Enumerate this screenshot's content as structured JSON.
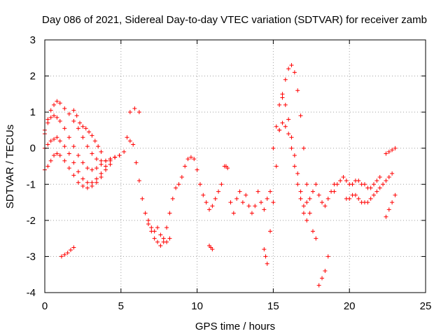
{
  "chart_data": {
    "type": "scatter",
    "title": "Day 086 of 2021, Sidereal Day-to-day VTEC variation (SDTVAR) for receiver zamb",
    "xlabel": "GPS time / hours",
    "ylabel": "SDTVAR / TECUs",
    "xlim": [
      0,
      25
    ],
    "ylim": [
      -4,
      3
    ],
    "xticks": [
      "0",
      "5",
      "10",
      "15",
      "20",
      "25"
    ],
    "yticks": [
      "-4",
      "-3",
      "-2",
      "-1",
      "0",
      "1",
      "2",
      "3"
    ],
    "grid": true,
    "marker": "plus",
    "color": "#ff0000",
    "series": [
      {
        "name": "arc-1",
        "x": [
          0.0,
          0.2,
          0.4,
          0.6,
          0.8,
          1.0,
          1.3,
          1.6,
          1.9,
          2.2,
          2.5,
          2.8,
          3.1,
          3.4,
          3.7,
          4.0,
          4.3,
          4.6,
          4.9,
          5.2
        ],
        "y": [
          0.4,
          0.8,
          1.05,
          1.2,
          1.3,
          1.25,
          1.1,
          0.95,
          0.75,
          0.55,
          0.3,
          0.05,
          -0.15,
          -0.3,
          -0.35,
          -0.35,
          -0.3,
          -0.25,
          -0.2,
          -0.1
        ]
      },
      {
        "name": "arc-2",
        "x": [
          0.0,
          0.2,
          0.4,
          0.6,
          0.8,
          1.0,
          1.3,
          1.6,
          1.9,
          2.2,
          2.5,
          2.8,
          3.1,
          3.4,
          3.7,
          4.0,
          4.3,
          4.6,
          4.9
        ],
        "y": [
          0.5,
          0.7,
          0.85,
          0.9,
          0.85,
          0.75,
          0.55,
          0.3,
          0.05,
          -0.2,
          -0.4,
          -0.55,
          -0.6,
          -0.55,
          -0.45,
          -0.35,
          -0.3,
          -0.25,
          -0.2
        ]
      },
      {
        "name": "arc-3",
        "x": [
          0.0,
          0.2,
          0.4,
          0.6,
          0.8,
          1.0,
          1.3,
          1.6,
          1.9,
          2.2,
          2.5,
          2.8,
          3.1,
          3.4,
          3.7,
          4.0,
          4.3,
          4.6
        ],
        "y": [
          0.0,
          0.1,
          0.2,
          0.25,
          0.3,
          0.2,
          0.05,
          -0.15,
          -0.4,
          -0.65,
          -0.85,
          -0.95,
          -0.95,
          -0.85,
          -0.7,
          -0.5,
          -0.35,
          -0.25
        ]
      },
      {
        "name": "arc-4",
        "x": [
          0.0,
          0.2,
          0.4,
          0.6,
          0.8,
          1.0,
          1.3,
          1.6,
          1.9,
          2.2,
          2.5,
          2.8,
          3.1,
          3.4,
          3.7,
          4.0,
          4.3
        ],
        "y": [
          -0.6,
          -0.5,
          -0.35,
          -0.2,
          -0.15,
          -0.2,
          -0.35,
          -0.55,
          -0.75,
          -0.95,
          -1.05,
          -1.1,
          -1.05,
          -0.95,
          -0.8,
          -0.6,
          -0.45
        ]
      },
      {
        "name": "segment-1",
        "x": [
          1.1,
          1.3,
          1.5,
          1.7,
          1.9
        ],
        "y": [
          -3.0,
          -2.95,
          -2.9,
          -2.82,
          -2.75
        ]
      },
      {
        "name": "segment-2",
        "x": [
          1.9,
          2.1,
          2.3,
          2.5,
          2.7,
          2.9,
          3.1,
          3.3,
          3.5,
          3.7
        ],
        "y": [
          1.05,
          0.9,
          0.7,
          0.6,
          0.55,
          0.45,
          0.35,
          0.2,
          0.05,
          -0.1
        ]
      },
      {
        "name": "segment-3",
        "x": [
          5.4,
          5.6,
          5.8,
          6.0,
          6.2,
          6.4,
          6.6,
          6.8,
          7.0,
          7.2,
          7.4,
          7.6,
          7.8,
          8.0,
          8.2
        ],
        "y": [
          0.3,
          0.2,
          0.1,
          -0.4,
          -0.9,
          -1.4,
          -1.8,
          -2.1,
          -2.2,
          -2.3,
          -2.2,
          -2.4,
          -2.5,
          -2.6,
          -2.5
        ]
      },
      {
        "name": "segment-4",
        "x": [
          5.6,
          5.9,
          6.2
        ],
        "y": [
          1.0,
          1.1,
          1.0
        ]
      },
      {
        "name": "segment-5",
        "x": [
          6.8,
          7.0,
          7.2,
          7.4,
          7.6,
          7.8,
          8.0,
          8.2,
          8.4,
          8.6
        ],
        "y": [
          -2.0,
          -2.3,
          -2.5,
          -2.6,
          -2.7,
          -2.6,
          -2.2,
          -1.8,
          -1.4,
          -1.1
        ]
      },
      {
        "name": "segment-6",
        "x": [
          8.8,
          9.0,
          9.2,
          9.4,
          9.6,
          9.8,
          10.0,
          10.2,
          10.4,
          10.6,
          10.8,
          11.0,
          11.2,
          11.4,
          11.6
        ],
        "y": [
          -1.0,
          -0.8,
          -0.5,
          -0.3,
          -0.25,
          -0.3,
          -0.6,
          -1.0,
          -1.3,
          -1.5,
          -1.7,
          -1.6,
          -1.4,
          -1.2,
          -1.0
        ]
      },
      {
        "name": "segment-7",
        "x": [
          10.8,
          10.9,
          11.0
        ],
        "y": [
          -2.7,
          -2.75,
          -2.8
        ]
      },
      {
        "name": "segment-8",
        "x": [
          11.8,
          11.9,
          12.0
        ],
        "y": [
          -0.5,
          -0.5,
          -0.55
        ]
      },
      {
        "name": "segment-9",
        "x": [
          12.2,
          12.4,
          12.6,
          12.8,
          13.0,
          13.2,
          13.4,
          13.6,
          13.8,
          14.0,
          14.2,
          14.4,
          14.6,
          14.8
        ],
        "y": [
          -1.5,
          -1.8,
          -1.4,
          -1.2,
          -1.5,
          -1.3,
          -1.6,
          -1.8,
          -1.6,
          -1.2,
          -1.5,
          -1.7,
          -1.4,
          -1.2
        ]
      },
      {
        "name": "segment-10",
        "x": [
          14.4,
          14.5,
          14.6
        ],
        "y": [
          -2.8,
          -3.0,
          -3.2
        ]
      },
      {
        "name": "segment-11",
        "x": [
          14.8,
          15.0,
          15.2,
          15.4,
          15.6,
          15.8,
          16.0,
          16.2,
          16.4,
          16.6,
          16.8,
          17.0,
          17.2,
          17.4,
          17.6,
          17.8
        ],
        "y": [
          -2.3,
          -1.5,
          -0.5,
          0.5,
          1.4,
          1.9,
          2.2,
          2.3,
          2.1,
          1.6,
          0.9,
          0.0,
          -1.0,
          -1.8,
          -2.3,
          -2.5
        ]
      },
      {
        "name": "segment-12",
        "x": [
          15.0,
          15.2,
          15.4,
          15.6,
          15.8,
          16.0,
          16.2,
          16.4,
          16.6,
          16.8,
          17.0
        ],
        "y": [
          0.0,
          0.6,
          1.2,
          1.5,
          1.2,
          0.8,
          0.3,
          -0.2,
          -0.7,
          -1.2,
          -1.6
        ]
      },
      {
        "name": "segment-13",
        "x": [
          15.4,
          15.6,
          15.8,
          16.0,
          16.2,
          16.4,
          16.6,
          16.8,
          17.0,
          17.2
        ],
        "y": [
          0.5,
          0.7,
          0.6,
          0.4,
          0.0,
          -0.5,
          -1.0,
          -1.4,
          -1.8,
          -2.0
        ]
      },
      {
        "name": "segment-14",
        "x": [
          17.2,
          17.4,
          17.6,
          17.8,
          18.0,
          18.2,
          18.4,
          18.6,
          18.8,
          19.0
        ],
        "y": [
          -1.5,
          -1.4,
          -1.2,
          -1.0,
          -1.3,
          -1.5,
          -1.6,
          -1.4,
          -1.2,
          -1.0
        ]
      },
      {
        "name": "segment-15",
        "x": [
          18.0,
          18.2,
          18.4,
          18.6
        ],
        "y": [
          -3.8,
          -3.6,
          -3.4,
          -3.0
        ]
      },
      {
        "name": "segment-16",
        "x": [
          19.0,
          19.2,
          19.4,
          19.6,
          19.8,
          20.0,
          20.2,
          20.4,
          20.6,
          20.8,
          21.0,
          21.2,
          21.4,
          21.6,
          21.8,
          22.0
        ],
        "y": [
          -1.2,
          -1.0,
          -0.9,
          -0.8,
          -0.9,
          -1.0,
          -1.0,
          -0.9,
          -0.9,
          -1.0,
          -1.0,
          -1.1,
          -1.1,
          -1.0,
          -0.9,
          -0.8
        ]
      },
      {
        "name": "segment-17",
        "x": [
          19.8,
          20.0,
          20.2,
          20.4,
          20.6,
          20.8,
          21.0,
          21.2,
          21.4,
          21.6,
          21.8,
          22.0,
          22.2,
          22.4,
          22.6,
          22.8
        ],
        "y": [
          -1.4,
          -1.4,
          -1.3,
          -1.3,
          -1.4,
          -1.5,
          -1.5,
          -1.5,
          -1.4,
          -1.3,
          -1.2,
          -1.1,
          -1.0,
          -0.9,
          -0.8,
          -0.7
        ]
      },
      {
        "name": "segment-18",
        "x": [
          22.4,
          22.6,
          22.8,
          23.0
        ],
        "y": [
          -1.9,
          -1.7,
          -1.5,
          -1.3
        ]
      },
      {
        "name": "segment-19",
        "x": [
          22.4,
          22.6,
          22.8,
          23.0
        ],
        "y": [
          -0.15,
          -0.1,
          -0.05,
          0.0
        ]
      }
    ]
  }
}
